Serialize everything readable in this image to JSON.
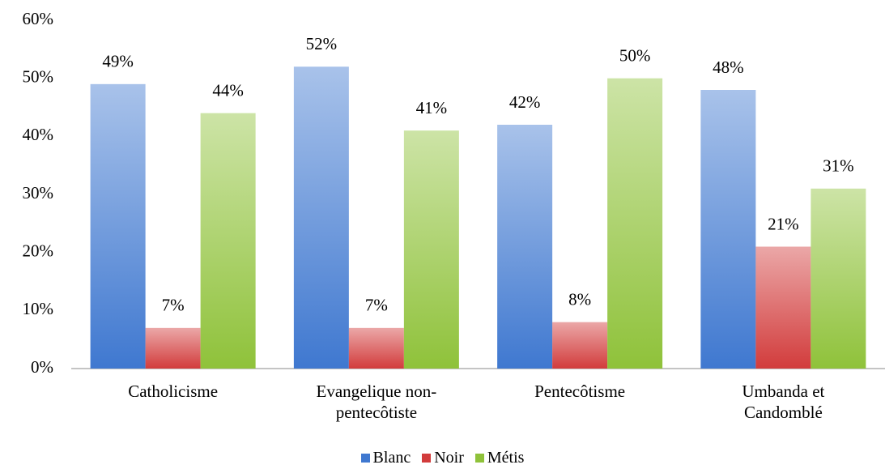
{
  "chart_data": {
    "type": "bar",
    "categories": [
      "Catholicisme",
      "Evangelique non-pentecôtiste",
      "Pentecôtisme",
      "Umbanda et Candomblé"
    ],
    "series": [
      {
        "name": "Blanc",
        "color": "#3f78d0",
        "values": [
          49,
          52,
          42,
          48
        ],
        "value_labels": [
          "49%",
          "52%",
          "42%",
          "48%"
        ]
      },
      {
        "name": "Noir",
        "color": "#d23c3c",
        "values": [
          7,
          7,
          8,
          21
        ],
        "value_labels": [
          "7%",
          "7%",
          "8%",
          "21%"
        ]
      },
      {
        "name": "Métis",
        "color": "#8fc23a",
        "values": [
          44,
          41,
          50,
          31
        ],
        "value_labels": [
          "44%",
          "41%",
          "50%",
          "31%"
        ]
      }
    ],
    "ylim": [
      0,
      60
    ],
    "yticks": [
      {
        "value": 0,
        "label": "0%"
      },
      {
        "value": 10,
        "label": "10%"
      },
      {
        "value": 20,
        "label": "20%"
      },
      {
        "value": 30,
        "label": "30%"
      },
      {
        "value": 40,
        "label": "40%"
      },
      {
        "value": 50,
        "label": "50%"
      },
      {
        "value": 60,
        "label": "60%"
      }
    ],
    "grid": false,
    "legend": "bottom"
  }
}
